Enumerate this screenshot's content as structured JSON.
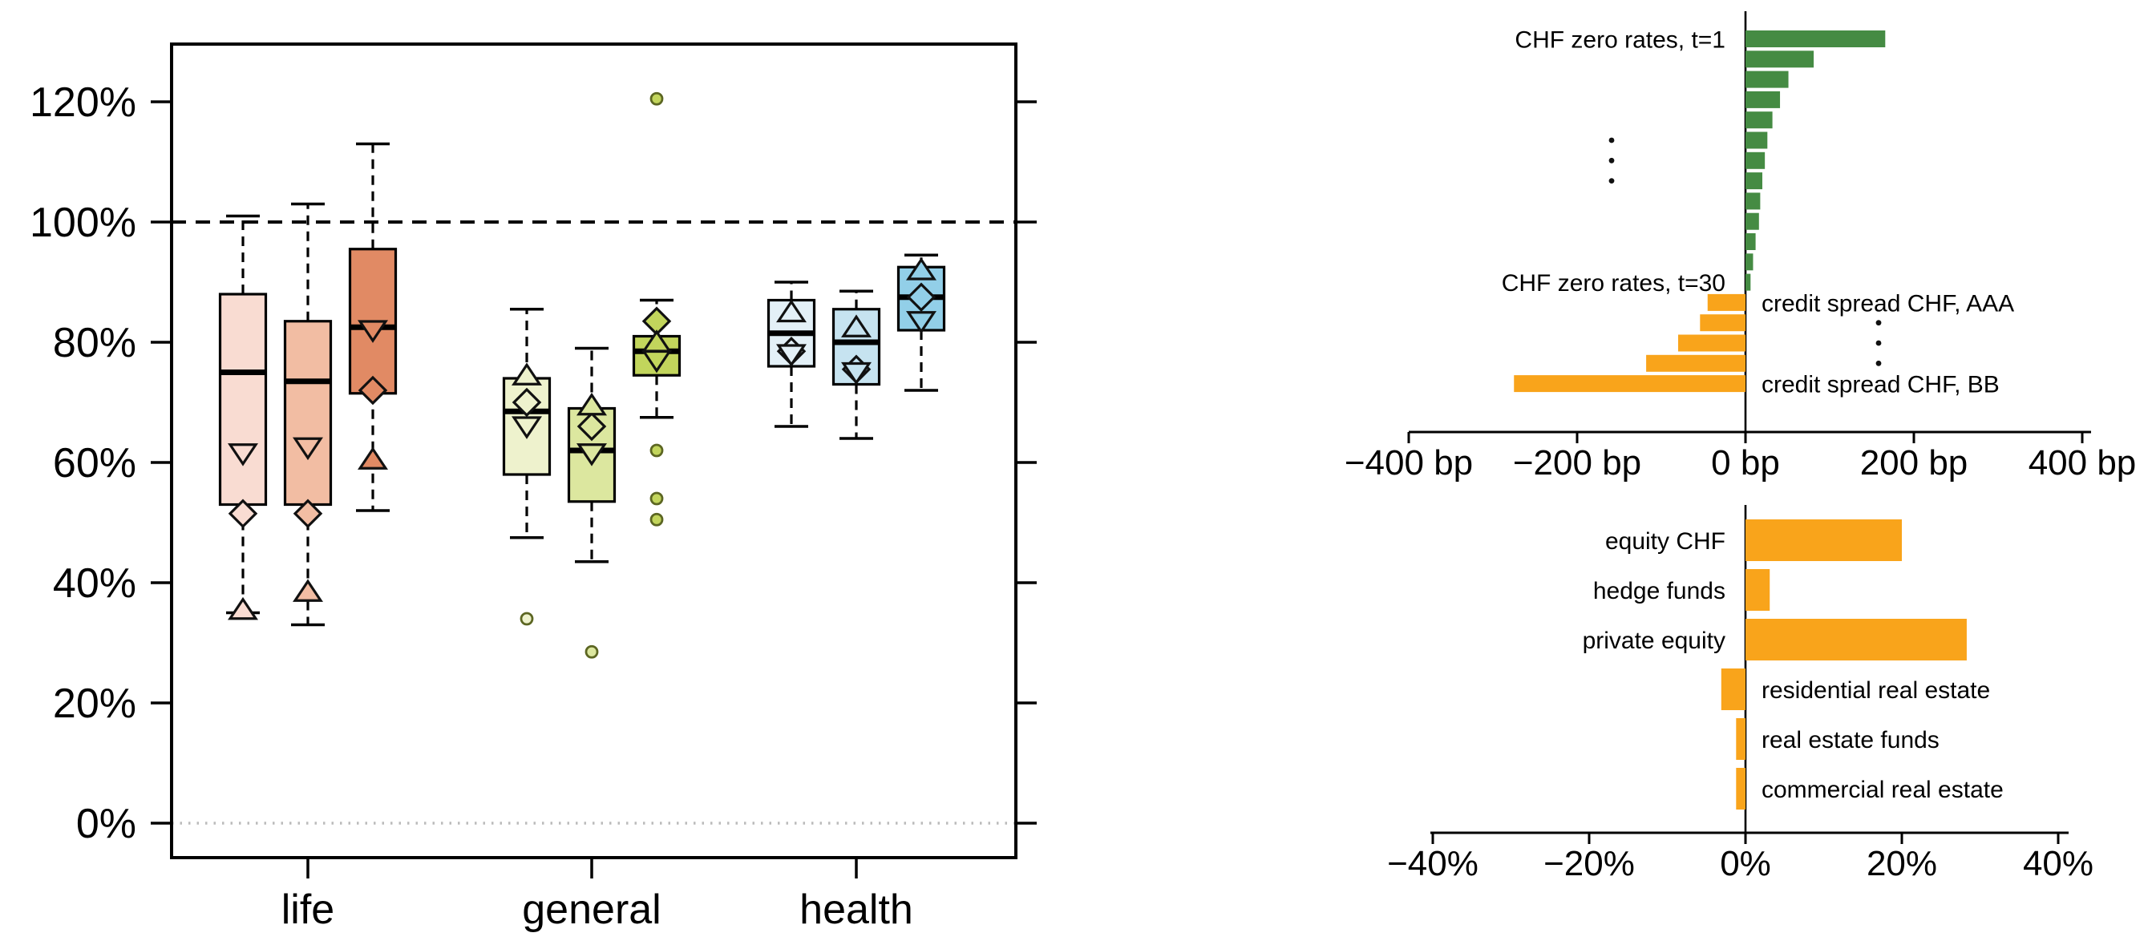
{
  "colors": {
    "green": "#458B43",
    "orange": "#F9A41B",
    "black": "#000000",
    "zero_line_gray": "#BBBBBB",
    "outlier_stroke": "#5C6622",
    "life_fills": [
      "#F9DCD2",
      "#F2BDA3",
      "#E18A64"
    ],
    "general_fills": [
      "#EEF2CD",
      "#DCE79F",
      "#C2D55C"
    ],
    "health_fills": [
      "#E3F0F7",
      "#C6E3F0",
      "#92CFE8"
    ]
  },
  "chart_data": [
    {
      "type": "boxplot",
      "title": "",
      "xlabel": "",
      "ylabel": "",
      "ylim": [
        0,
        130
      ],
      "ytick_values": [
        0,
        20,
        40,
        60,
        80,
        100,
        120
      ],
      "ytick_labels": [
        "0%",
        "20%",
        "40%",
        "60%",
        "80%",
        "100%",
        "120%"
      ],
      "ref_line_value": 100,
      "zero_line_value": 0,
      "categories": [
        "life",
        "general",
        "health"
      ],
      "groups": [
        {
          "label": "life",
          "boxes": [
            {
              "fill": "#F9DCD2",
              "whisker_low": 35,
              "q1": 53,
              "median": 75,
              "q3": 88,
              "whisker_high": 101,
              "outliers": [],
              "markers": {
                "triangle_down": 61.5,
                "diamond": 51.5,
                "triangle_up": 35.5
              }
            },
            {
              "fill": "#F2BDA3",
              "whisker_low": 33,
              "q1": 53,
              "median": 73.5,
              "q3": 83.5,
              "whisker_high": 103,
              "outliers": [],
              "markers": {
                "triangle_down": 62.5,
                "diamond": 51.5,
                "triangle_up": 38.5
              }
            },
            {
              "fill": "#E18A64",
              "whisker_low": 52,
              "q1": 71.5,
              "median": 82.5,
              "q3": 95.5,
              "whisker_high": 113,
              "outliers": [],
              "markers": {
                "triangle_down": 82,
                "diamond": 72,
                "triangle_up": 60.5
              }
            }
          ]
        },
        {
          "label": "general",
          "boxes": [
            {
              "fill": "#EEF2CD",
              "whisker_low": 47.5,
              "q1": 58,
              "median": 68.5,
              "q3": 74,
              "whisker_high": 85.5,
              "outliers": [
                34
              ],
              "markers": {
                "triangle_up": 74.5,
                "diamond": 70,
                "triangle_down": 66
              }
            },
            {
              "fill": "#DCE79F",
              "whisker_low": 43.5,
              "q1": 53.5,
              "median": 62,
              "q3": 69,
              "whisker_high": 79,
              "outliers": [
                28.5
              ],
              "markers": {
                "triangle_up": 69.5,
                "diamond": 66,
                "triangle_down": 61.5
              }
            },
            {
              "fill": "#C2D55C",
              "whisker_low": 67.5,
              "q1": 74.5,
              "median": 78.5,
              "q3": 81,
              "whisker_high": 87,
              "outliers": [
                120.5,
                62,
                54,
                50.5
              ],
              "markers": {
                "diamond": 83.5,
                "triangle_up": 80,
                "triangle_down": 77
              }
            }
          ]
        },
        {
          "label": "health",
          "boxes": [
            {
              "fill": "#E3F0F7",
              "whisker_low": 66,
              "q1": 76,
              "median": 81.5,
              "q3": 87,
              "whisker_high": 90,
              "outliers": [],
              "markers": {
                "triangle_up": 85,
                "diamond": 78.5,
                "triangle_down": 78
              }
            },
            {
              "fill": "#C6E3F0",
              "whisker_low": 64,
              "q1": 73,
              "median": 80,
              "q3": 85.5,
              "whisker_high": 88.5,
              "outliers": [],
              "markers": {
                "triangle_up": 82.5,
                "diamond": 75.5,
                "triangle_down": 75
              }
            },
            {
              "fill": "#92CFE8",
              "whisker_low": 72,
              "q1": 82,
              "median": 87.5,
              "q3": 92.5,
              "whisker_high": 94.5,
              "outliers": [],
              "markers": {
                "triangle_up": 92,
                "diamond": 87.5,
                "triangle_down": 83.5
              }
            }
          ]
        }
      ]
    },
    {
      "type": "bar",
      "orientation": "horizontal",
      "unit": "bp",
      "xlim": [
        -400,
        400
      ],
      "xtick_values": [
        -400,
        -200,
        0,
        200,
        400
      ],
      "xtick_labels": [
        "−400 bp",
        "−200 bp",
        "0 bp",
        "200 bp",
        "400 bp"
      ],
      "bars": [
        {
          "value": 166,
          "color": "green",
          "label": "CHF zero rates, t=1",
          "label_side": "left"
        },
        {
          "value": 81,
          "color": "green"
        },
        {
          "value": 51,
          "color": "green"
        },
        {
          "value": 41,
          "color": "green"
        },
        {
          "value": 32,
          "color": "green"
        },
        {
          "value": 26,
          "color": "green"
        },
        {
          "value": 23,
          "color": "green"
        },
        {
          "value": 20,
          "color": "green"
        },
        {
          "value": 17.5,
          "color": "green"
        },
        {
          "value": 16,
          "color": "green"
        },
        {
          "value": 12,
          "color": "green"
        },
        {
          "value": 9,
          "color": "green"
        },
        {
          "value": 6,
          "color": "green",
          "label": "CHF zero rates, t=30",
          "label_side": "left"
        },
        {
          "value": -45,
          "color": "orange",
          "label": "credit spread CHF, AAA",
          "label_side": "right"
        },
        {
          "value": -54,
          "color": "orange"
        },
        {
          "value": -80,
          "color": "orange"
        },
        {
          "value": -118,
          "color": "orange"
        },
        {
          "value": -275,
          "color": "orange",
          "label": "credit spread CHF, BB",
          "label_side": "right"
        }
      ],
      "ellipsis_left_rows": [
        5,
        6,
        7
      ],
      "ellipsis_right_rows": [
        14,
        15,
        16
      ]
    },
    {
      "type": "bar",
      "orientation": "horizontal",
      "unit": "%",
      "xlim": [
        -40,
        40
      ],
      "xtick_values": [
        -40,
        -20,
        0,
        20,
        40
      ],
      "xtick_labels": [
        "−40%",
        "−20%",
        "0%",
        "20%",
        "40%"
      ],
      "bars": [
        {
          "value": 20,
          "color": "orange",
          "label": "equity CHF",
          "label_side": "left"
        },
        {
          "value": 3.1,
          "color": "orange",
          "label": "hedge funds",
          "label_side": "left"
        },
        {
          "value": 28.3,
          "color": "orange",
          "label": "private equity",
          "label_side": "left"
        },
        {
          "value": -3.1,
          "color": "orange",
          "label": "residential real estate",
          "label_side": "right"
        },
        {
          "value": -1.2,
          "color": "orange",
          "label": "real estate funds",
          "label_side": "right"
        },
        {
          "value": -1.2,
          "color": "orange",
          "label": "commercial real estate",
          "label_side": "right"
        }
      ],
      "ellipsis_left_rows": [],
      "ellipsis_right_rows": []
    }
  ]
}
